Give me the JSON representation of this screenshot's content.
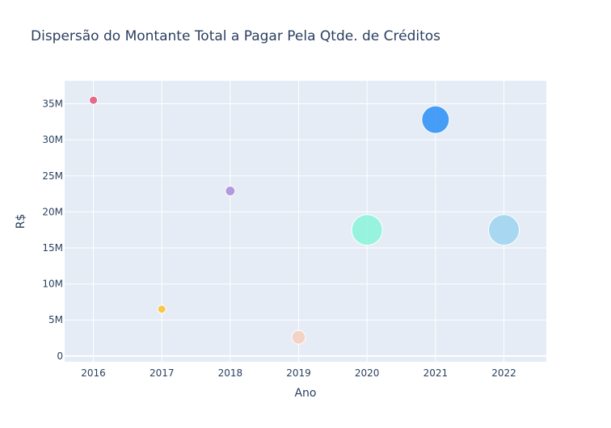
{
  "chart_data": {
    "type": "scatter",
    "title": "Dispersão do Montante Total a Pagar Pela Qtde. de Créditos",
    "xlabel": "Ano",
    "ylabel": "R$",
    "x_ticks": [
      "2016",
      "2017",
      "2018",
      "2019",
      "2020",
      "2021",
      "2022"
    ],
    "y_ticks": [
      "0",
      "5M",
      "10M",
      "15M",
      "20M",
      "25M",
      "30M",
      "35M"
    ],
    "xlim": [
      2015.58,
      2022.62
    ],
    "ylim": [
      -800000,
      38200000
    ],
    "grid": true,
    "points": [
      {
        "x": 2016,
        "y": 35500000,
        "size": 10,
        "color": "#e45271"
      },
      {
        "x": 2017,
        "y": 6500000,
        "size": 10,
        "color": "#fbc02d"
      },
      {
        "x": 2018,
        "y": 22900000,
        "size": 12,
        "color": "#a98bd8"
      },
      {
        "x": 2019,
        "y": 2600000,
        "size": 17,
        "color": "#f5cfbd"
      },
      {
        "x": 2020,
        "y": 17500000,
        "size": 38,
        "color": "#8af5d8"
      },
      {
        "x": 2021,
        "y": 32800000,
        "size": 34,
        "color": "#2a8ff5"
      },
      {
        "x": 2022,
        "y": 17500000,
        "size": 38,
        "color": "#9ed3f0"
      }
    ]
  }
}
